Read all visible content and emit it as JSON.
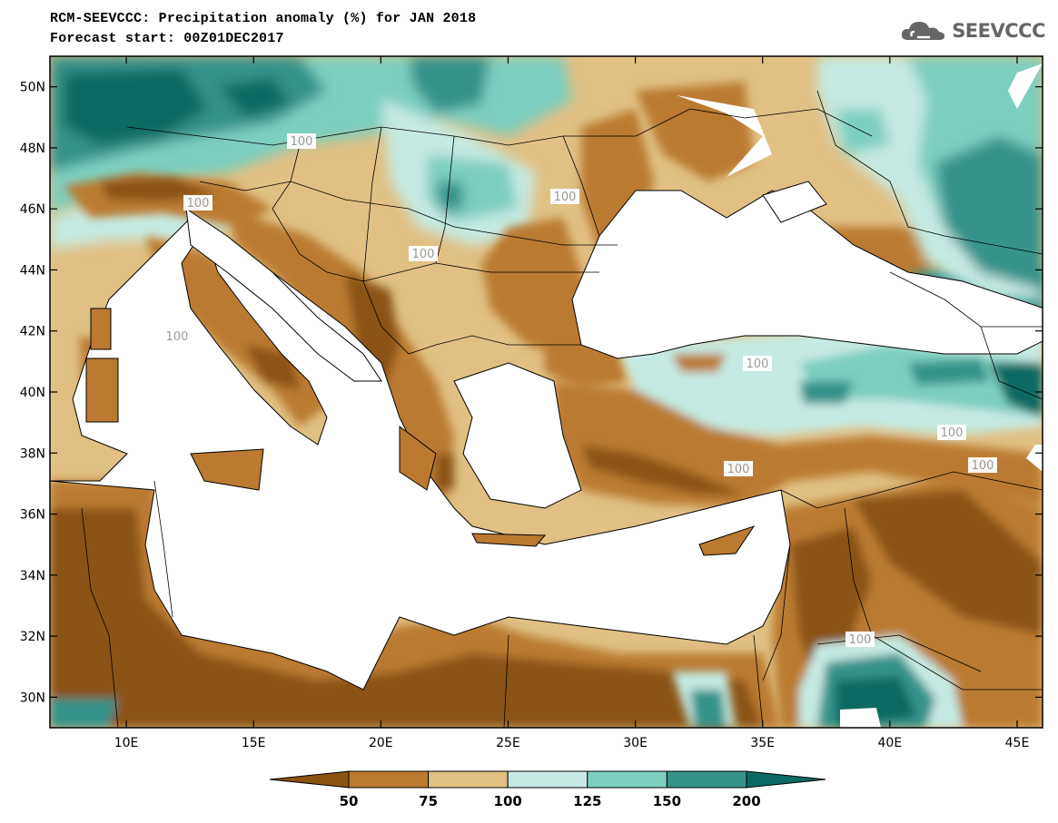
{
  "title": {
    "line1": "RCM-SEEVCCC: Precipitation anomaly (%) for JAN 2018",
    "line2": "Forecast start: 00Z01DEC2017"
  },
  "logo": {
    "text": "SEEVCCC",
    "icon": "cloud-icon"
  },
  "axes": {
    "lat_labels": [
      "50N",
      "48N",
      "46N",
      "44N",
      "42N",
      "40N",
      "38N",
      "36N",
      "34N",
      "32N",
      "30N"
    ],
    "lon_labels": [
      "10E",
      "15E",
      "20E",
      "25E",
      "30E",
      "35E",
      "40E",
      "45E"
    ],
    "lon_range": [
      7,
      46
    ],
    "lat_range": [
      29,
      51
    ]
  },
  "contour_labels": [
    "100",
    "100",
    "100",
    "100",
    "100",
    "100",
    "100",
    "100",
    "100",
    "100"
  ],
  "colorbar": {
    "labels": [
      "50",
      "75",
      "100",
      "125",
      "150",
      "200"
    ],
    "colors": [
      "#8b5212",
      "#bb7a30",
      "#e0c083",
      "#c6eae3",
      "#7dcfc0",
      "#36938a",
      "#0c6a62"
    ]
  },
  "colors": {
    "land_dry": "#8b5212",
    "land_mid": "#bb7a30",
    "land_light": "#e0c083",
    "wet_light": "#c6eae3",
    "wet_mid": "#7dcfc0",
    "wet_dark": "#36938a",
    "wet_darkest": "#0c6a62",
    "sea": "#ffffff"
  }
}
